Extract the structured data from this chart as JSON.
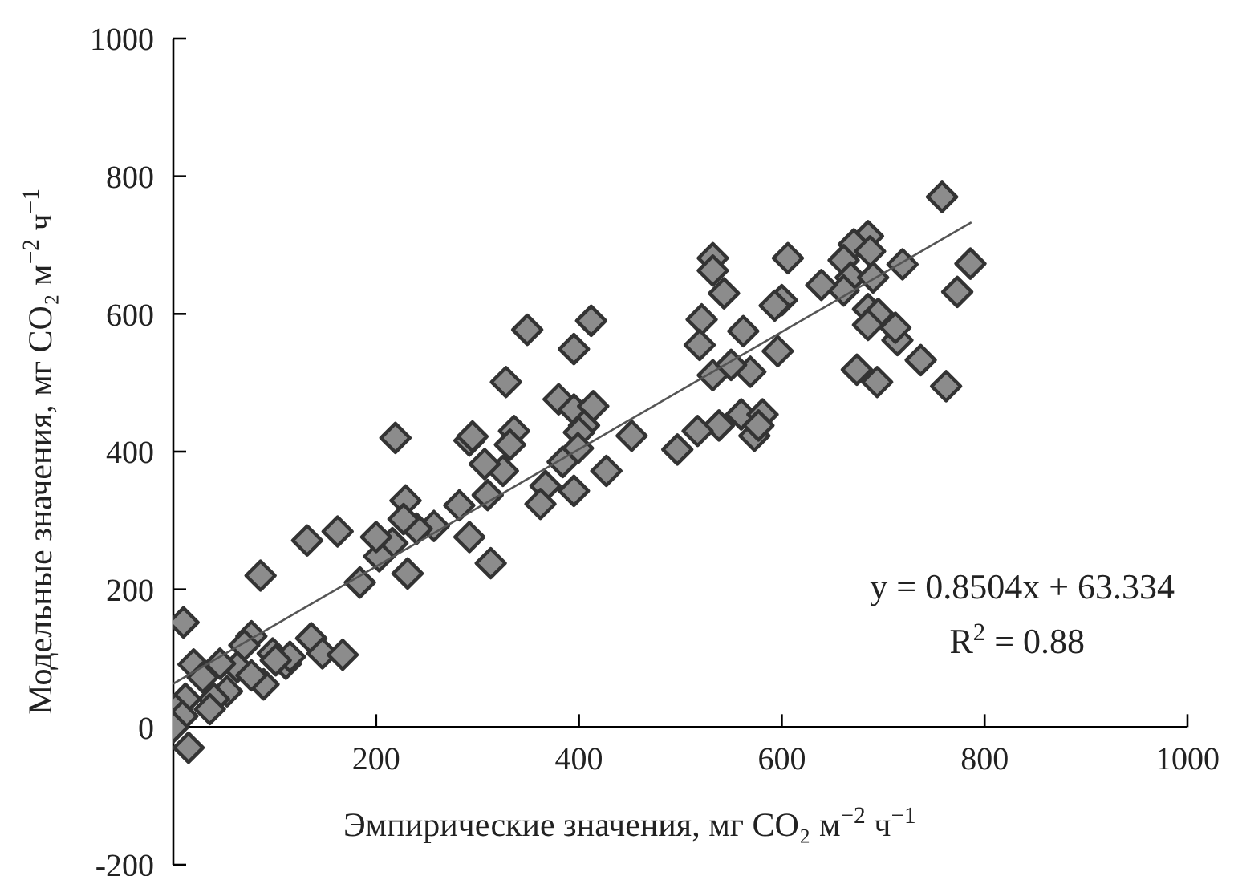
{
  "chart_data": {
    "type": "scatter",
    "xlabel": "Эмпирические значения, мг CO₂ м$^{−2}$ ч$^{−1}$",
    "ylabel": "Модельные значения, мг CO₂ м$^{−2}$ ч$^{−1}$",
    "annotations": [
      "y = 0.8504x + 63.334",
      "R$^{2}$ = 0.88"
    ],
    "xlim": [
      0,
      1000
    ],
    "xticks": [
      200,
      400,
      600,
      800,
      1000
    ],
    "ylim": [
      -200,
      1000
    ],
    "yticks": [
      -200,
      0,
      200,
      400,
      600,
      800,
      1000
    ],
    "series": [
      {
        "type": "scatter",
        "marker": "diamond",
        "color": "#8c8c8c",
        "x": [
          758,
          786,
          773,
          737,
          762,
          719,
          714,
          712,
          685,
          671,
          687,
          661,
          668,
          690,
          661,
          639,
          685,
          695,
          685,
          674,
          694,
          606,
          600,
          593,
          596,
          562,
          569,
          543,
          532,
          532,
          521,
          519,
          532,
          550,
          560,
          573,
          581,
          577,
          538,
          517,
          497,
          452,
          427,
          412,
          395,
          349,
          328,
          380,
          395,
          414,
          405,
          400,
          399,
          384,
          367,
          362,
          395,
          336,
          332,
          325,
          307,
          310,
          292,
          295,
          282,
          292,
          313,
          257,
          240,
          229,
          227,
          231,
          219,
          216,
          203,
          200,
          184,
          162,
          132,
          86,
          10,
          136,
          147,
          167,
          111,
          98,
          77,
          70,
          89,
          63,
          77,
          46,
          20,
          29,
          53,
          40,
          36,
          12,
          2,
          9,
          0,
          15,
          115,
          101
        ],
        "values": [
          770,
          673,
          632,
          533,
          495,
          672,
          562,
          580,
          713,
          701,
          691,
          678,
          653,
          653,
          634,
          642,
          607,
          600,
          584,
          519,
          501,
          681,
          620,
          612,
          546,
          575,
          516,
          630,
          681,
          663,
          592,
          555,
          511,
          526,
          454,
          423,
          454,
          438,
          438,
          430,
          403,
          423,
          372,
          590,
          549,
          577,
          501,
          476,
          461,
          466,
          438,
          428,
          405,
          385,
          350,
          324,
          343,
          430,
          410,
          372,
          382,
          337,
          416,
          422,
          322,
          276,
          238,
          292,
          288,
          329,
          302,
          223,
          420,
          267,
          248,
          276,
          210,
          284,
          271,
          220,
          152,
          129,
          107,
          105,
          92,
          107,
          132,
          119,
          62,
          87,
          75,
          92,
          91,
          72,
          52,
          41,
          26,
          41,
          26,
          16,
          0,
          -30,
          102,
          97
        ]
      },
      {
        "type": "line",
        "color": "#555555",
        "x": [
          0,
          787
        ],
        "marker": "none",
        "values": [
          63,
          733
        ]
      }
    ]
  }
}
